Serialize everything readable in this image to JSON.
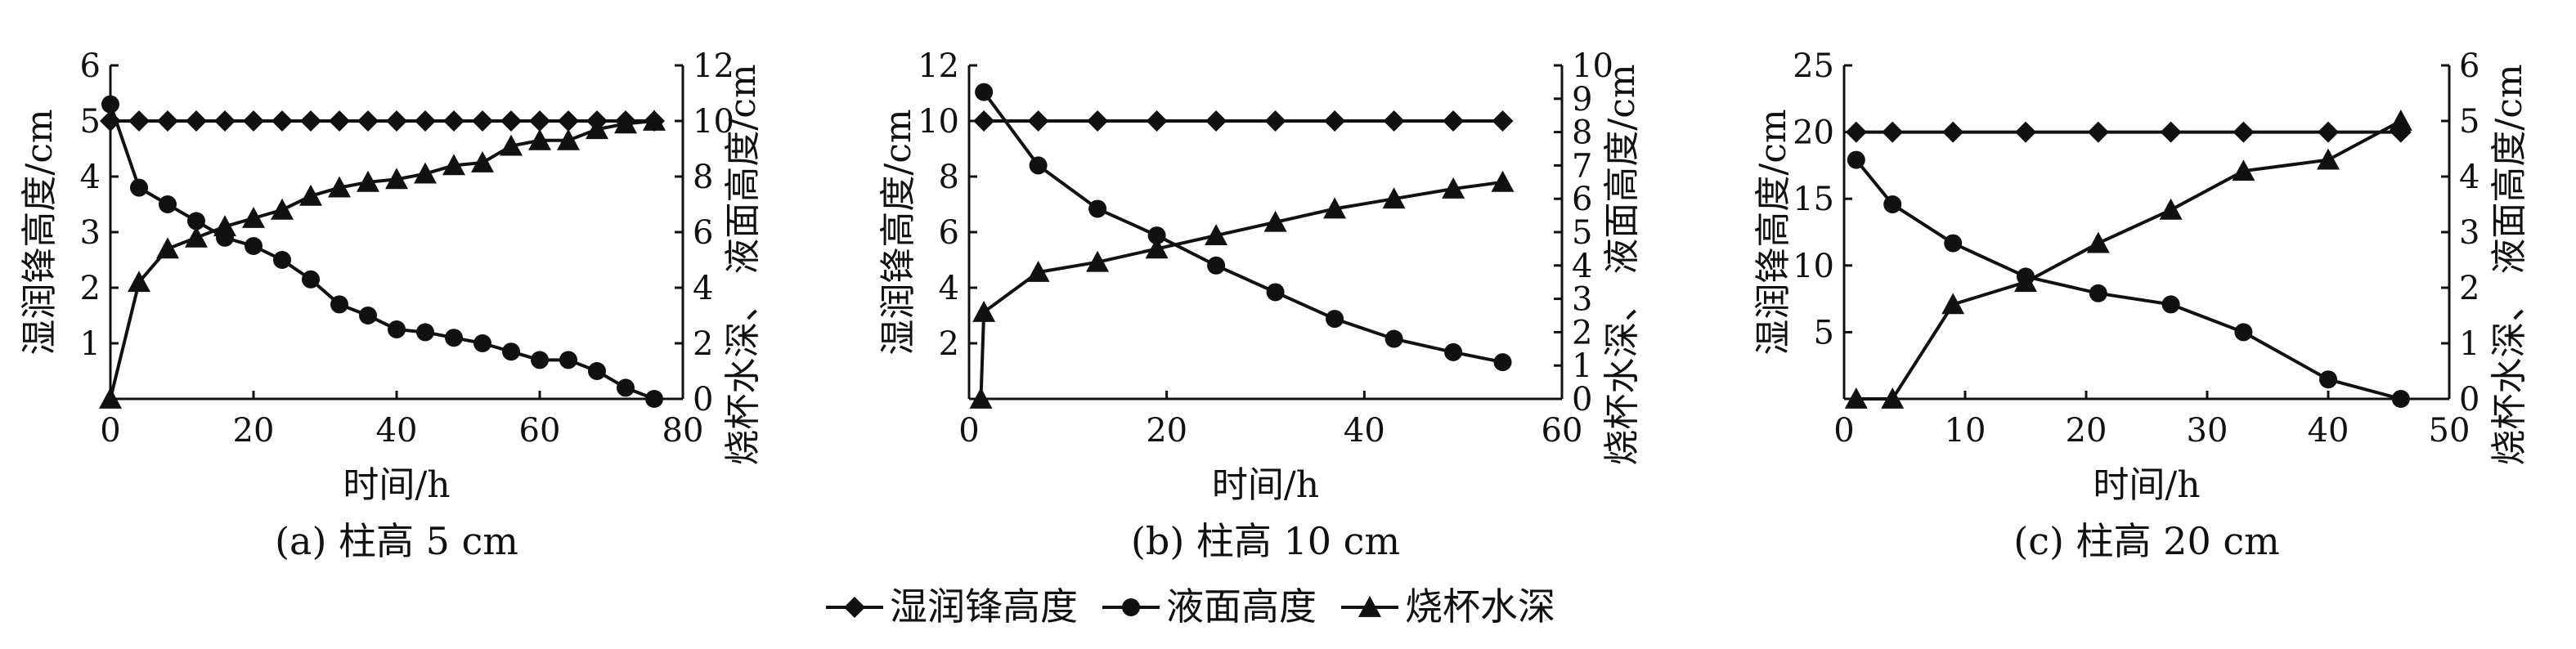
{
  "figure": {
    "legend": [
      {
        "marker": "diamond",
        "label": "湿润锋高度"
      },
      {
        "marker": "circle",
        "label": "液面高度"
      },
      {
        "marker": "triangle",
        "label": "烧杯水深"
      }
    ],
    "colors": {
      "ink": "#111111",
      "background": "#ffffff"
    }
  },
  "chart_data": [
    {
      "type": "line",
      "caption": "(a) 柱高 5 cm",
      "xlabel": "时间/h",
      "ylabel_left": "湿润锋高度/cm",
      "ylabel_right": "烧杯水深、 液面高度/cm",
      "xlim": [
        0,
        80
      ],
      "xticks": [
        0,
        20,
        40,
        60,
        80
      ],
      "ylim_left": [
        0,
        6
      ],
      "yticks_left": [
        1,
        2,
        3,
        4,
        5,
        6
      ],
      "ylim_right": [
        0,
        12
      ],
      "yticks_right": [
        0,
        2,
        4,
        6,
        8,
        10,
        12
      ],
      "series": [
        {
          "name": "湿润锋高度",
          "marker": "diamond",
          "axis": "left",
          "x": [
            0,
            4,
            8,
            12,
            16,
            20,
            24,
            28,
            32,
            36,
            40,
            44,
            48,
            52,
            56,
            60,
            64,
            68,
            72,
            76
          ],
          "y": [
            5,
            5,
            5,
            5,
            5,
            5,
            5,
            5,
            5,
            5,
            5,
            5,
            5,
            5,
            5,
            5,
            5,
            5,
            5,
            5
          ]
        },
        {
          "name": "液面高度",
          "marker": "circle",
          "axis": "right",
          "x": [
            0,
            4,
            8,
            12,
            16,
            20,
            24,
            28,
            32,
            36,
            40,
            44,
            48,
            52,
            56,
            60,
            64,
            68,
            72,
            76
          ],
          "y": [
            10.6,
            7.6,
            7.0,
            6.4,
            5.8,
            5.5,
            5.0,
            4.3,
            3.4,
            3.0,
            2.5,
            2.4,
            2.2,
            2.0,
            1.7,
            1.4,
            1.4,
            1.0,
            0.4,
            0.0
          ]
        },
        {
          "name": "烧杯水深",
          "marker": "triangle",
          "axis": "right",
          "x": [
            0,
            4,
            8,
            12,
            16,
            20,
            24,
            28,
            32,
            36,
            40,
            44,
            48,
            52,
            56,
            60,
            64,
            68,
            72,
            76
          ],
          "y": [
            0.0,
            4.2,
            5.4,
            5.8,
            6.2,
            6.5,
            6.8,
            7.3,
            7.6,
            7.8,
            7.9,
            8.1,
            8.4,
            8.5,
            9.1,
            9.3,
            9.3,
            9.7,
            9.9,
            10.0
          ]
        }
      ]
    },
    {
      "type": "line",
      "caption": "(b) 柱高 10 cm",
      "xlabel": "时间/h",
      "ylabel_left": "湿润锋高度/cm",
      "ylabel_right": "烧杯水深、 液面高度/cm",
      "xlim": [
        0,
        60
      ],
      "xticks": [
        0,
        20,
        40,
        60
      ],
      "ylim_left": [
        0,
        12
      ],
      "yticks_left": [
        2,
        4,
        6,
        8,
        10,
        12
      ],
      "ylim_right": [
        0,
        10
      ],
      "yticks_right": [
        0,
        1,
        2,
        3,
        4,
        5,
        6,
        7,
        8,
        9,
        10
      ],
      "series": [
        {
          "name": "湿润锋高度",
          "marker": "diamond",
          "axis": "left",
          "x": [
            1.5,
            7,
            13,
            19,
            25,
            31,
            37,
            43,
            49,
            54
          ],
          "y": [
            10,
            10,
            10,
            10,
            10,
            10,
            10,
            10,
            10,
            10
          ]
        },
        {
          "name": "液面高度",
          "marker": "circle",
          "axis": "right",
          "x": [
            1.5,
            7,
            13,
            19,
            25,
            31,
            37,
            43,
            49,
            54
          ],
          "y": [
            9.2,
            7.0,
            5.7,
            4.9,
            4.0,
            3.2,
            2.4,
            1.8,
            1.4,
            1.1
          ]
        },
        {
          "name": "烧杯水深",
          "marker": "triangle",
          "axis": "right",
          "x": [
            1.2,
            1.5,
            7,
            13,
            19,
            25,
            31,
            37,
            43,
            49,
            54
          ],
          "y": [
            0.0,
            2.6,
            3.8,
            4.1,
            4.5,
            4.9,
            5.3,
            5.7,
            6.0,
            6.3,
            6.5
          ]
        }
      ]
    },
    {
      "type": "line",
      "caption": "(c) 柱高 20 cm",
      "xlabel": "时间/h",
      "ylabel_left": "湿润锋高度/cm",
      "ylabel_right": "烧杯水深、 液面高度/cm",
      "xlim": [
        0,
        50
      ],
      "xticks": [
        0,
        10,
        20,
        30,
        40,
        50
      ],
      "ylim_left": [
        0,
        25
      ],
      "yticks_left": [
        5,
        10,
        15,
        20,
        25
      ],
      "ylim_right": [
        0,
        6
      ],
      "yticks_right": [
        0,
        1,
        2,
        3,
        4,
        5,
        6
      ],
      "series": [
        {
          "name": "湿润锋高度",
          "marker": "diamond",
          "axis": "left",
          "x": [
            1,
            4,
            9,
            15,
            21,
            27,
            33,
            40,
            46
          ],
          "y": [
            20,
            20,
            20,
            20,
            20,
            20,
            20,
            20,
            20
          ]
        },
        {
          "name": "液面高度",
          "marker": "circle",
          "axis": "right",
          "x": [
            1,
            4,
            9,
            15,
            21,
            27,
            33,
            40,
            46
          ],
          "y": [
            4.3,
            3.5,
            2.8,
            2.2,
            1.9,
            1.7,
            1.2,
            0.35,
            0.0
          ]
        },
        {
          "name": "烧杯水深",
          "marker": "triangle",
          "axis": "right",
          "x": [
            1,
            4,
            9,
            15,
            21,
            27,
            33,
            40,
            46
          ],
          "y": [
            0.0,
            0.0,
            1.7,
            2.1,
            2.8,
            3.4,
            4.1,
            4.3,
            5.0
          ]
        }
      ]
    }
  ]
}
